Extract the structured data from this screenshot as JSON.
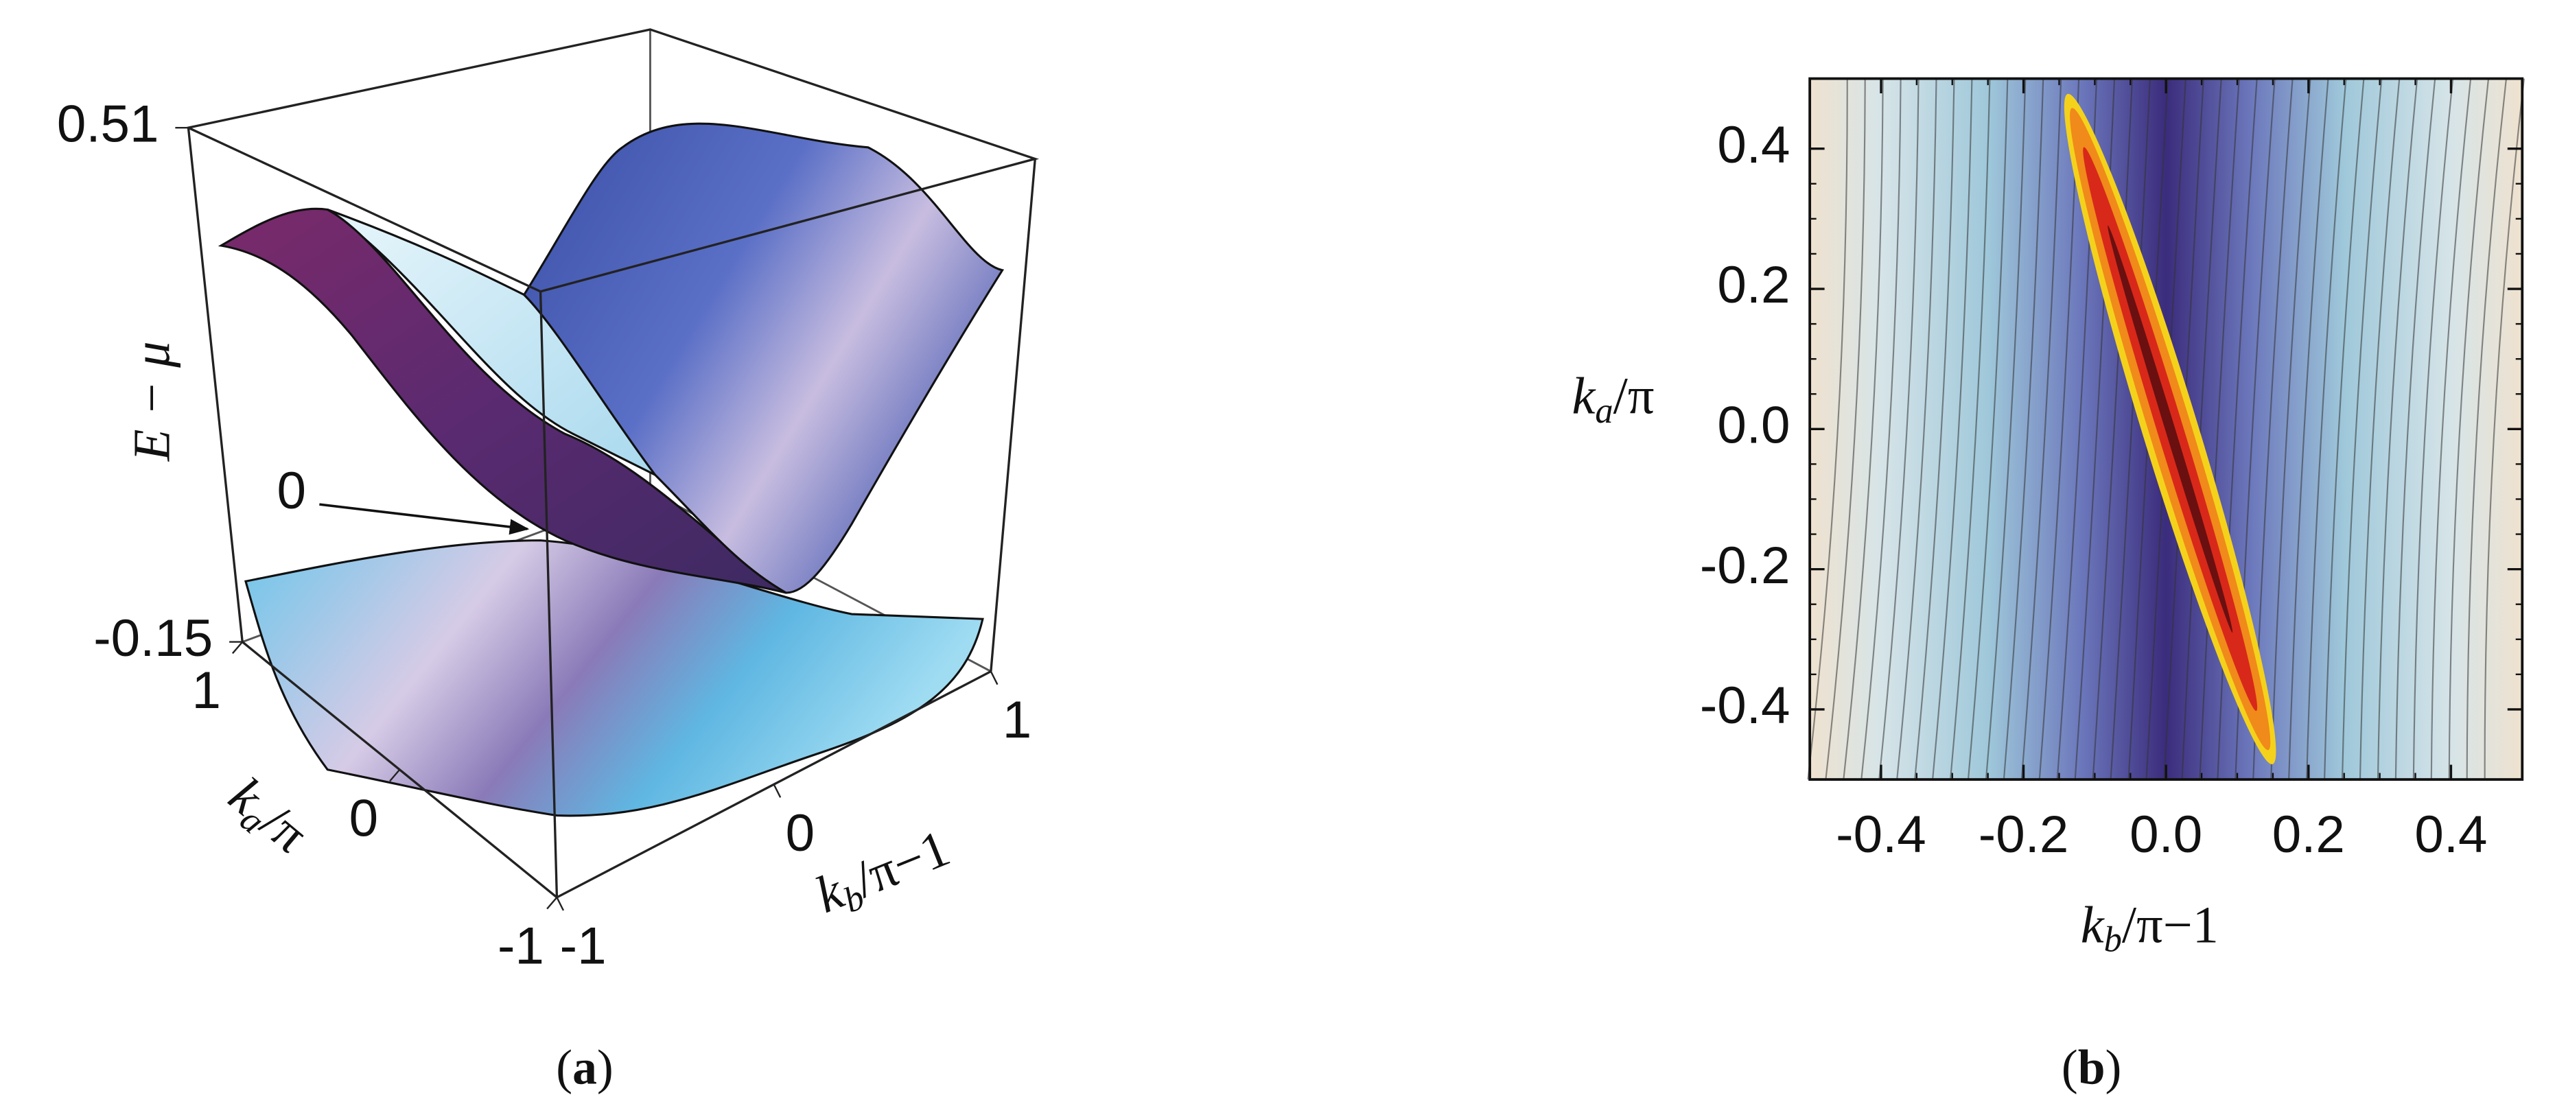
{
  "chart_data": [
    {
      "type": "surface3d",
      "z_label": "E − μ",
      "zlim": [
        -0.15,
        0.51
      ],
      "zticks": [
        -0.15,
        0.51
      ],
      "annotation": "0",
      "ylim": [
        -1,
        1
      ],
      "yticks": [
        1,
        0,
        -1
      ],
      "y_label": [
        "k",
        "a",
        "/π"
      ],
      "xlim": [
        -1,
        1
      ],
      "xticks": [
        -1,
        0,
        1
      ],
      "x_label": [
        "k",
        "b",
        "/π−1"
      ],
      "caption": [
        "(",
        "a",
        ")"
      ]
    },
    {
      "type": "contour",
      "xlim": [
        -0.5,
        0.5
      ],
      "xticks": [
        -0.4,
        -0.2,
        {
          "value": 0,
          "label": "0.0"
        },
        0.2,
        0.4
      ],
      "ylim": [
        -0.5,
        0.5
      ],
      "yticks": [
        -0.4,
        -0.2,
        {
          "value": 0,
          "label": "0.0"
        },
        0.2,
        0.4
      ],
      "x_label": [
        "k",
        "b",
        "/π−1"
      ],
      "y_label": [
        "k",
        "a",
        "/π"
      ],
      "caption": [
        "(",
        "b",
        ")"
      ]
    }
  ]
}
